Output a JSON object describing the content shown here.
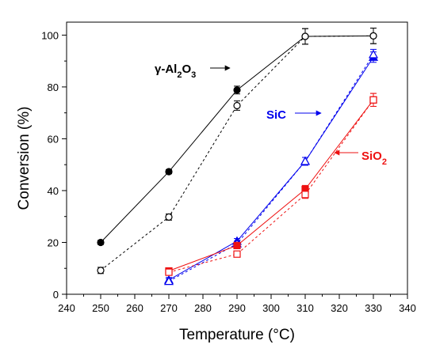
{
  "chart_data": {
    "type": "line",
    "xlabel": "Temperature (°C)",
    "ylabel": "Conversion (%)",
    "xlim": [
      240,
      340
    ],
    "ylim": [
      0,
      105
    ],
    "xticks": [
      240,
      250,
      260,
      270,
      280,
      290,
      300,
      310,
      320,
      330,
      340
    ],
    "yticks": [
      0,
      20,
      40,
      60,
      80,
      100
    ],
    "grid": false,
    "legend": "none",
    "series": [
      {
        "color": "#000000",
        "marker": "circle",
        "filled": true,
        "line": "solid",
        "x": [
          250,
          270,
          290,
          310,
          330
        ],
        "y": [
          20,
          47.3,
          78.8,
          99.5,
          99.7
        ],
        "err": [
          0.8,
          0.8,
          1.5,
          3,
          3
        ]
      },
      {
        "color": "#000000",
        "marker": "circle",
        "filled": false,
        "line": "dashed",
        "x": [
          250,
          270,
          290,
          310,
          330
        ],
        "y": [
          9.2,
          29.8,
          72.8,
          99.5,
          99.7
        ],
        "err": [
          1.2,
          1.2,
          1.8,
          3,
          3
        ]
      },
      {
        "color": "#0000ee",
        "marker": "triangle",
        "filled": true,
        "line": "solid",
        "x": [
          270,
          290,
          310,
          330
        ],
        "y": [
          5.5,
          20.5,
          51.3,
          91.5
        ],
        "err": [
          1,
          1,
          1.5,
          2
        ]
      },
      {
        "color": "#0000ee",
        "marker": "triangle",
        "filled": false,
        "line": "dashed",
        "x": [
          270,
          290,
          310,
          330
        ],
        "y": [
          5,
          19.5,
          51.3,
          92.5
        ],
        "err": [
          1,
          1,
          1.5,
          2
        ]
      },
      {
        "color": "#ee1111",
        "marker": "square",
        "filled": true,
        "line": "solid",
        "x": [
          270,
          290,
          310,
          330
        ],
        "y": [
          9,
          18.8,
          40.5,
          75
        ],
        "err": [
          1,
          1,
          1.5,
          2.5
        ]
      },
      {
        "color": "#ee1111",
        "marker": "square",
        "filled": false,
        "line": "dashed",
        "x": [
          270,
          290,
          310,
          330
        ],
        "y": [
          8.5,
          15.5,
          38.5,
          75
        ],
        "err": [
          1,
          1,
          1.5,
          2.5
        ]
      }
    ],
    "annotations": [
      {
        "color": "#000000",
        "text_parts": [
          "γ-Al",
          "2",
          "O",
          "3"
        ],
        "points_to": [
          290,
          80
        ]
      },
      {
        "color": "#0000ee",
        "text_parts": [
          "SiC"
        ],
        "points_to": [
          312,
          69
        ]
      },
      {
        "color": "#ee1111",
        "text_parts": [
          "SiO",
          "2"
        ],
        "points_to": [
          322,
          53.5
        ]
      }
    ]
  }
}
